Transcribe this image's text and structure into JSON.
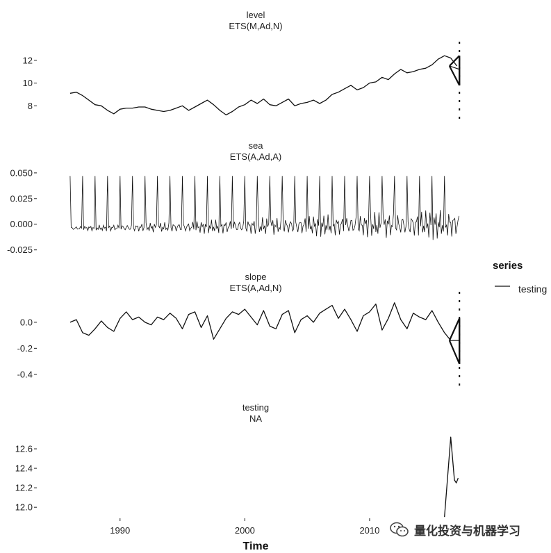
{
  "chart_data": {
    "type": "line",
    "xlabel": "Time",
    "x_ticks": [
      1990,
      2000,
      2010
    ],
    "xlim": [
      1984.0,
      2017.8
    ],
    "legend": {
      "title": "series",
      "entries": [
        "testing"
      ],
      "placement": "right"
    },
    "panels": [
      {
        "title": "level",
        "subtitle": "ETS(M,Ad,N)",
        "ylim": [
          6.8,
          12.9
        ],
        "y_ticks": [
          8,
          10,
          12
        ],
        "y_tick_labels": [
          "8",
          "10",
          "12"
        ],
        "series": {
          "name": "level",
          "x": [
            1986.0,
            1986.5,
            1987.0,
            1987.5,
            1988.0,
            1988.5,
            1989.0,
            1989.5,
            1990.0,
            1990.5,
            1991.0,
            1991.5,
            1992.0,
            1992.5,
            1993.0,
            1993.5,
            1994.0,
            1994.5,
            1995.0,
            1995.5,
            1996.0,
            1996.5,
            1997.0,
            1997.5,
            1998.0,
            1998.5,
            1999.0,
            1999.5,
            2000.0,
            2000.5,
            2001.0,
            2001.5,
            2002.0,
            2002.5,
            2003.0,
            2003.5,
            2004.0,
            2004.5,
            2005.0,
            2005.5,
            2006.0,
            2006.5,
            2007.0,
            2007.5,
            2008.0,
            2008.5,
            2009.0,
            2009.5,
            2010.0,
            2010.5,
            2011.0,
            2011.5,
            2012.0,
            2012.5,
            2013.0,
            2013.5,
            2014.0,
            2014.5,
            2015.0,
            2015.5,
            2016.0,
            2016.5,
            2017.0
          ],
          "values": [
            9.1,
            9.2,
            8.9,
            8.5,
            8.1,
            8.0,
            7.6,
            7.3,
            7.7,
            7.8,
            7.8,
            7.9,
            7.9,
            7.7,
            7.6,
            7.5,
            7.6,
            7.8,
            8.0,
            7.6,
            7.9,
            8.2,
            8.5,
            8.1,
            7.6,
            7.2,
            7.5,
            7.9,
            8.1,
            8.5,
            8.2,
            8.6,
            8.1,
            8.0,
            8.3,
            8.6,
            8.0,
            8.2,
            8.3,
            8.5,
            8.2,
            8.5,
            9.0,
            9.2,
            9.5,
            9.8,
            9.4,
            9.6,
            10.0,
            10.1,
            10.5,
            10.3,
            10.8,
            11.2,
            10.9,
            11.0,
            11.2,
            11.3,
            11.6,
            12.1,
            12.4,
            12.2,
            11.5
          ]
        },
        "forecast": {
          "x": [
            2016.4,
            2017.2
          ],
          "mean_end": 11.2,
          "upper_end": 12.4,
          "lower_end": 9.8
        }
      },
      {
        "title": "sea",
        "subtitle": "ETS(A,Ad,A)",
        "ylim": [
          -0.032,
          0.056
        ],
        "y_ticks": [
          -0.025,
          0.0,
          0.025,
          0.05
        ],
        "y_tick_labels": [
          "-0.025",
          "0.000",
          "0.025",
          "0.050"
        ],
        "seasonal": {
          "start": 1986.0,
          "end": 2016.4,
          "peak": 0.047,
          "base_start": -0.004,
          "base_end": 0.0,
          "amp_start": 0.002,
          "amp_end": 0.016,
          "tail_end": 2017.2
        }
      },
      {
        "title": "slope",
        "subtitle": "ETS(A,Ad,N)",
        "ylim": [
          -0.47,
          0.17
        ],
        "y_ticks": [
          -0.4,
          -0.2,
          0.0
        ],
        "y_tick_labels": [
          "-0.4",
          "-0.2",
          "0.0"
        ],
        "series": {
          "name": "slope",
          "x": [
            1986.0,
            1986.5,
            1987.0,
            1987.5,
            1988.0,
            1988.5,
            1989.0,
            1989.5,
            1990.0,
            1990.5,
            1991.0,
            1991.5,
            1992.0,
            1992.5,
            1993.0,
            1993.5,
            1994.0,
            1994.5,
            1995.0,
            1995.5,
            1996.0,
            1996.5,
            1997.0,
            1997.5,
            1998.0,
            1998.5,
            1999.0,
            1999.5,
            2000.0,
            2000.5,
            2001.0,
            2001.5,
            2002.0,
            2002.5,
            2003.0,
            2003.5,
            2004.0,
            2004.5,
            2005.0,
            2005.5,
            2006.0,
            2006.5,
            2007.0,
            2007.5,
            2008.0,
            2008.5,
            2009.0,
            2009.5,
            2010.0,
            2010.5,
            2011.0,
            2011.5,
            2012.0,
            2012.5,
            2013.0,
            2013.5,
            2014.0,
            2014.5,
            2015.0,
            2015.5,
            2016.0,
            2016.5
          ],
          "values": [
            0.0,
            0.02,
            -0.08,
            -0.1,
            -0.05,
            0.01,
            -0.04,
            -0.07,
            0.03,
            0.08,
            0.02,
            0.04,
            0.0,
            -0.02,
            0.04,
            0.02,
            0.07,
            0.03,
            -0.05,
            0.06,
            0.08,
            -0.04,
            0.05,
            -0.13,
            -0.05,
            0.03,
            0.08,
            0.06,
            0.1,
            0.04,
            -0.02,
            0.09,
            -0.03,
            -0.05,
            0.06,
            0.09,
            -0.08,
            0.02,
            0.05,
            0.0,
            0.07,
            0.1,
            0.13,
            0.03,
            0.1,
            0.02,
            -0.07,
            0.05,
            0.08,
            0.14,
            -0.06,
            0.03,
            0.15,
            0.02,
            -0.05,
            0.07,
            0.04,
            0.02,
            0.09,
            0.0,
            -0.08,
            -0.14
          ]
        },
        "forecast": {
          "x": [
            2016.4,
            2017.2
          ],
          "mean_end": -0.14,
          "upper_end": 0.03,
          "lower_end": -0.32
        }
      },
      {
        "title": "testing",
        "subtitle": "NA",
        "ylim": [
          11.93,
          12.8
        ],
        "y_ticks": [
          12.0,
          12.2,
          12.4,
          12.6
        ],
        "y_tick_labels": [
          "12.0",
          "12.2",
          "12.4",
          "12.6"
        ],
        "series": {
          "name": "testing",
          "x": [
            2016.0,
            2016.5,
            2016.8,
            2016.95,
            2017.1
          ],
          "values": [
            11.9,
            12.72,
            12.28,
            12.25,
            12.3
          ]
        }
      }
    ]
  },
  "watermark": {
    "text": "量化投资与机器学习",
    "icon": "wechat-icon"
  }
}
